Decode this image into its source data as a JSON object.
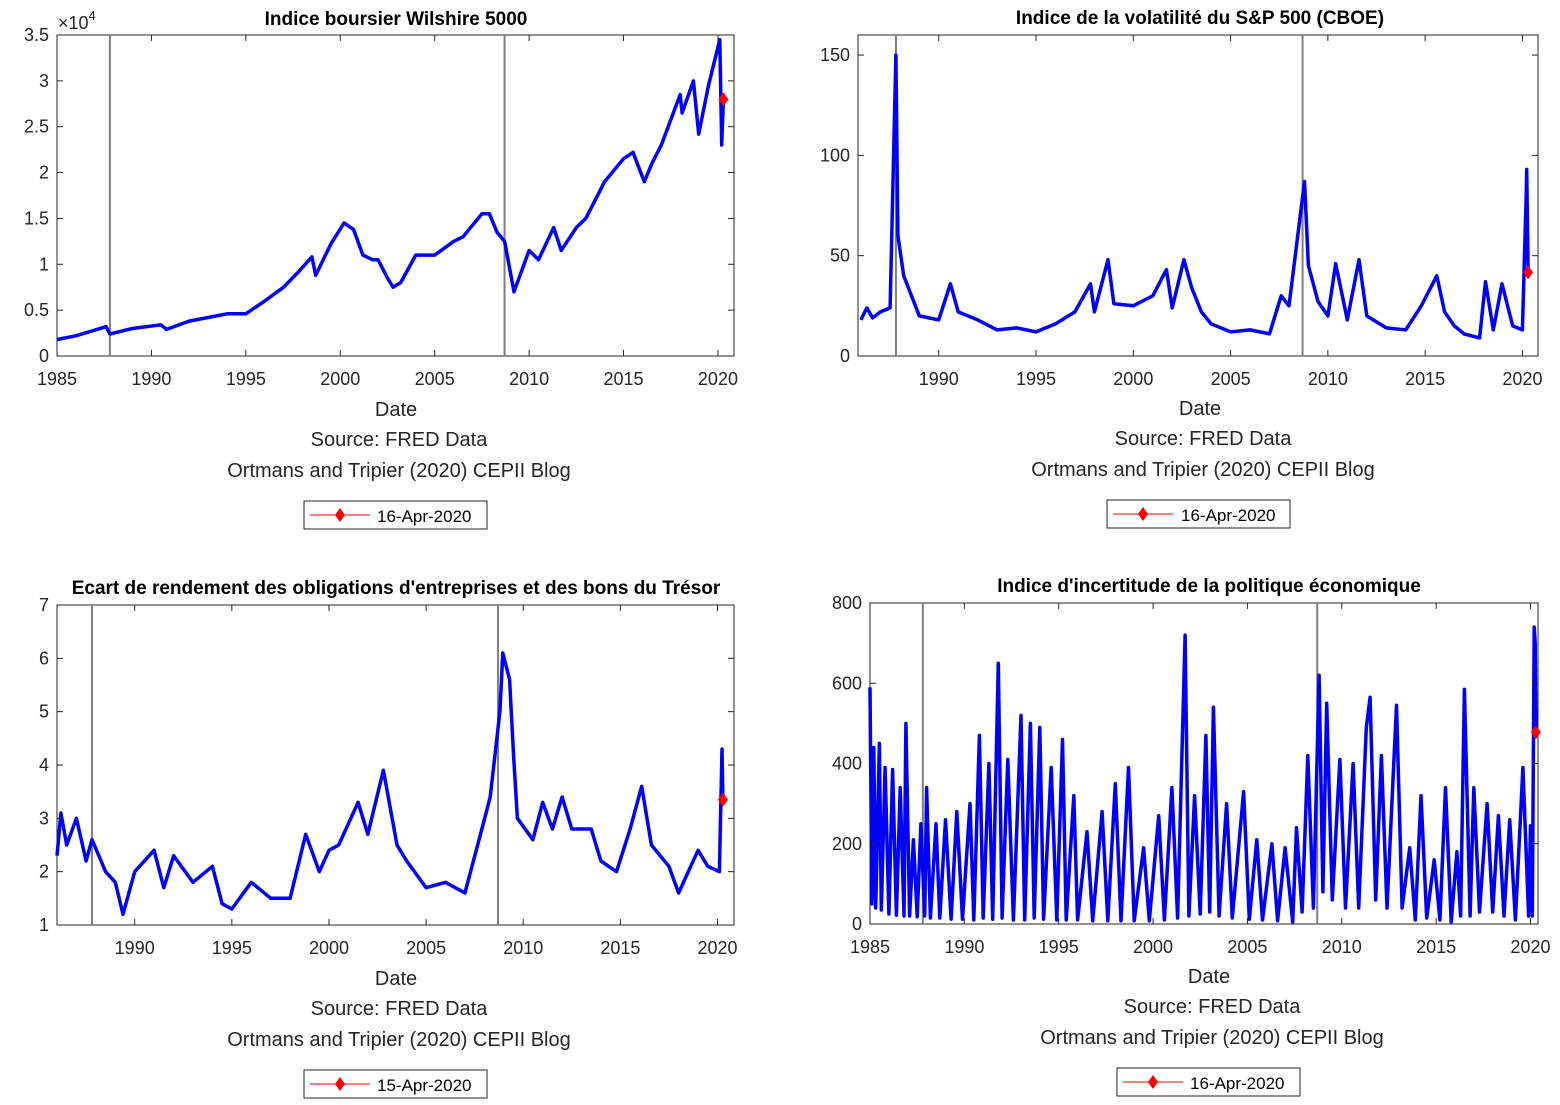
{
  "chart_data": [
    {
      "type": "line",
      "title": "Indice boursier Wilshire 5000",
      "xlabel": "Date",
      "notes": [
        "Source: FRED Data",
        "Ortmans and Tripier (2020) CEPII Blog"
      ],
      "exponent_label": "×10",
      "exponent_power": "4",
      "xlim": [
        1985,
        2020.85
      ],
      "ylim": [
        0,
        3.5
      ],
      "xticks": [
        1985,
        1990,
        1995,
        2000,
        2005,
        2010,
        2015,
        2020
      ],
      "yticks": [
        0,
        0.5,
        1,
        1.5,
        2,
        2.5,
        3,
        3.5
      ],
      "ytick_labels": [
        "0",
        "0.5",
        "1",
        "1.5",
        "2",
        "2.5",
        "3",
        "3.5"
      ],
      "vlines": [
        1987.8,
        2008.7
      ],
      "series_color": "#0000ff",
      "marker": {
        "x": 2020.29,
        "y": 2.8,
        "label": "16-Apr-2020",
        "color": "#ff0000"
      },
      "points": [
        [
          1985,
          0.18
        ],
        [
          1986,
          0.22
        ],
        [
          1987.6,
          0.32
        ],
        [
          1987.8,
          0.24
        ],
        [
          1989,
          0.3
        ],
        [
          1990.5,
          0.34
        ],
        [
          1990.8,
          0.29
        ],
        [
          1992,
          0.38
        ],
        [
          1993,
          0.42
        ],
        [
          1994,
          0.46
        ],
        [
          1995,
          0.46
        ],
        [
          1996,
          0.6
        ],
        [
          1997,
          0.75
        ],
        [
          1997.8,
          0.92
        ],
        [
          1998.5,
          1.08
        ],
        [
          1998.7,
          0.88
        ],
        [
          1999.5,
          1.22
        ],
        [
          2000.2,
          1.45
        ],
        [
          2000.7,
          1.38
        ],
        [
          2001.2,
          1.1
        ],
        [
          2001.7,
          1.05
        ],
        [
          2002,
          1.05
        ],
        [
          2002.5,
          0.85
        ],
        [
          2002.8,
          0.75
        ],
        [
          2003.2,
          0.8
        ],
        [
          2004,
          1.1
        ],
        [
          2005,
          1.1
        ],
        [
          2006,
          1.25
        ],
        [
          2006.5,
          1.3
        ],
        [
          2007.5,
          1.55
        ],
        [
          2007.9,
          1.55
        ],
        [
          2008.3,
          1.35
        ],
        [
          2008.7,
          1.25
        ],
        [
          2009.2,
          0.7
        ],
        [
          2010,
          1.15
        ],
        [
          2010.5,
          1.05
        ],
        [
          2011.3,
          1.4
        ],
        [
          2011.7,
          1.15
        ],
        [
          2012.5,
          1.4
        ],
        [
          2013,
          1.5
        ],
        [
          2014,
          1.9
        ],
        [
          2015,
          2.15
        ],
        [
          2015.5,
          2.22
        ],
        [
          2016.1,
          1.9
        ],
        [
          2016.5,
          2.1
        ],
        [
          2017,
          2.3
        ],
        [
          2018,
          2.85
        ],
        [
          2018.1,
          2.65
        ],
        [
          2018.7,
          3.0
        ],
        [
          2018.98,
          2.42
        ],
        [
          2019.5,
          2.95
        ],
        [
          2020.1,
          3.45
        ],
        [
          2020.2,
          2.3
        ],
        [
          2020.29,
          2.8
        ]
      ]
    },
    {
      "type": "line",
      "title": "Indice de la volatilité du S&P 500 (CBOE)",
      "xlabel": "Date",
      "notes": [
        "Source: FRED Data",
        "Ortmans and Tripier (2020) CEPII Blog"
      ],
      "xlim": [
        1985.85,
        2020.8
      ],
      "ylim": [
        0,
        160
      ],
      "xticks": [
        1990,
        1995,
        2000,
        2005,
        2010,
        2015,
        2020
      ],
      "yticks": [
        0,
        50,
        100,
        150
      ],
      "ytick_labels": [
        "0",
        "50",
        "100",
        "150"
      ],
      "vlines": [
        1987.8,
        2008.7
      ],
      "series_color": "#0000ff",
      "marker": {
        "x": 2020.29,
        "y": 41.7,
        "label": "16-Apr-2020",
        "color": "#ff0000"
      },
      "points": [
        [
          1986,
          18
        ],
        [
          1986.3,
          24
        ],
        [
          1986.6,
          19
        ],
        [
          1987,
          22
        ],
        [
          1987.5,
          24
        ],
        [
          1987.8,
          150
        ],
        [
          1987.9,
          60
        ],
        [
          1988.2,
          40
        ],
        [
          1989,
          20
        ],
        [
          1990,
          18
        ],
        [
          1990.6,
          36
        ],
        [
          1991,
          22
        ],
        [
          1992,
          18
        ],
        [
          1993,
          13
        ],
        [
          1994,
          14
        ],
        [
          1995,
          12
        ],
        [
          1996,
          16
        ],
        [
          1997,
          22
        ],
        [
          1997.8,
          36
        ],
        [
          1998,
          22
        ],
        [
          1998.7,
          48
        ],
        [
          1999,
          26
        ],
        [
          2000,
          25
        ],
        [
          2001,
          30
        ],
        [
          2001.7,
          43
        ],
        [
          2002,
          24
        ],
        [
          2002.6,
          48
        ],
        [
          2003,
          34
        ],
        [
          2003.5,
          22
        ],
        [
          2004,
          16
        ],
        [
          2005,
          12
        ],
        [
          2006,
          13
        ],
        [
          2007,
          11
        ],
        [
          2007.6,
          30
        ],
        [
          2008,
          25
        ],
        [
          2008.8,
          87
        ],
        [
          2009,
          45
        ],
        [
          2009.5,
          27
        ],
        [
          2010,
          20
        ],
        [
          2010.4,
          46
        ],
        [
          2011,
          18
        ],
        [
          2011.6,
          48
        ],
        [
          2012,
          20
        ],
        [
          2013,
          14
        ],
        [
          2014,
          13
        ],
        [
          2014.8,
          25
        ],
        [
          2015.6,
          40
        ],
        [
          2016,
          22
        ],
        [
          2016.5,
          15
        ],
        [
          2017,
          11
        ],
        [
          2017.8,
          9
        ],
        [
          2018.1,
          37
        ],
        [
          2018.5,
          13
        ],
        [
          2018.95,
          36
        ],
        [
          2019.5,
          15
        ],
        [
          2020,
          13
        ],
        [
          2020.2,
          82
        ],
        [
          2020.22,
          93
        ],
        [
          2020.29,
          41.7
        ]
      ]
    },
    {
      "type": "line",
      "title": "Ecart de rendement des obligations d'entreprises et des bons du Trésor",
      "xlabel": "Date",
      "notes": [
        "Source: FRED Data",
        "Ortmans and Tripier (2020) CEPII Blog"
      ],
      "xlim": [
        1986,
        2020.85
      ],
      "ylim": [
        1,
        7
      ],
      "xticks": [
        1990,
        1995,
        2000,
        2005,
        2010,
        2015,
        2020
      ],
      "yticks": [
        1,
        2,
        3,
        4,
        5,
        6,
        7
      ],
      "ytick_labels": [
        "1",
        "2",
        "3",
        "4",
        "5",
        "6",
        "7"
      ],
      "vlines": [
        1987.8,
        2008.7
      ],
      "series_color": "#0000ff",
      "marker": {
        "x": 2020.28,
        "y": 3.35,
        "label": "15-Apr-2020",
        "color": "#ff0000"
      },
      "points": [
        [
          1986,
          2.3
        ],
        [
          1986.2,
          3.1
        ],
        [
          1986.5,
          2.5
        ],
        [
          1987,
          3.0
        ],
        [
          1987.5,
          2.2
        ],
        [
          1987.8,
          2.6
        ],
        [
          1988.5,
          2.0
        ],
        [
          1989,
          1.8
        ],
        [
          1989.4,
          1.2
        ],
        [
          1990,
          2.0
        ],
        [
          1991,
          2.4
        ],
        [
          1991.5,
          1.7
        ],
        [
          1992,
          2.3
        ],
        [
          1993,
          1.8
        ],
        [
          1994,
          2.1
        ],
        [
          1994.5,
          1.4
        ],
        [
          1995,
          1.3
        ],
        [
          1996,
          1.8
        ],
        [
          1997,
          1.5
        ],
        [
          1998,
          1.5
        ],
        [
          1998.8,
          2.7
        ],
        [
          1999.5,
          2.0
        ],
        [
          2000,
          2.4
        ],
        [
          2000.5,
          2.5
        ],
        [
          2001.5,
          3.3
        ],
        [
          2002,
          2.7
        ],
        [
          2002.8,
          3.9
        ],
        [
          2003.5,
          2.5
        ],
        [
          2004,
          2.2
        ],
        [
          2005,
          1.7
        ],
        [
          2006,
          1.8
        ],
        [
          2007,
          1.6
        ],
        [
          2007.8,
          2.7
        ],
        [
          2008.3,
          3.4
        ],
        [
          2008.8,
          5.0
        ],
        [
          2008.95,
          6.1
        ],
        [
          2009.3,
          5.6
        ],
        [
          2009.5,
          4.2
        ],
        [
          2009.7,
          3.0
        ],
        [
          2010.5,
          2.6
        ],
        [
          2011,
          3.3
        ],
        [
          2011.5,
          2.8
        ],
        [
          2012,
          3.4
        ],
        [
          2012.5,
          2.8
        ],
        [
          2013.5,
          2.8
        ],
        [
          2014,
          2.2
        ],
        [
          2014.8,
          2.0
        ],
        [
          2015.5,
          2.8
        ],
        [
          2016.1,
          3.6
        ],
        [
          2016.6,
          2.5
        ],
        [
          2017.5,
          2.1
        ],
        [
          2018,
          1.6
        ],
        [
          2018.5,
          2.0
        ],
        [
          2019,
          2.4
        ],
        [
          2019.5,
          2.1
        ],
        [
          2020.1,
          2.0
        ],
        [
          2020.23,
          4.3
        ],
        [
          2020.28,
          3.35
        ]
      ]
    },
    {
      "type": "line",
      "title": "Indice d'incertitude de la politique économique",
      "xlabel": "Date",
      "notes": [
        "Source: FRED Data",
        "Ortmans and Tripier (2020) CEPII Blog"
      ],
      "xlim": [
        1985,
        2020.4
      ],
      "ylim": [
        0,
        800
      ],
      "xticks": [
        1985,
        1990,
        1995,
        2000,
        2005,
        2010,
        2015,
        2020
      ],
      "yticks": [
        0,
        200,
        400,
        600,
        800
      ],
      "ytick_labels": [
        "0",
        "200",
        "400",
        "600",
        "800"
      ],
      "vlines": [
        1987.8,
        2008.7
      ],
      "series_color": "#0000ff",
      "marker": {
        "x": 2020.29,
        "y": 478,
        "label": "16-Apr-2020",
        "color": "#ff0000"
      },
      "points": [
        [
          1985,
          590
        ],
        [
          1985.1,
          50
        ],
        [
          1985.2,
          440
        ],
        [
          1985.3,
          40
        ],
        [
          1985.5,
          450
        ],
        [
          1985.6,
          35
        ],
        [
          1985.8,
          390
        ],
        [
          1986,
          25
        ],
        [
          1986.2,
          385
        ],
        [
          1986.4,
          22
        ],
        [
          1986.6,
          340
        ],
        [
          1986.8,
          20
        ],
        [
          1986.9,
          500
        ],
        [
          1987.1,
          20
        ],
        [
          1987.3,
          210
        ],
        [
          1987.5,
          18
        ],
        [
          1987.7,
          250
        ],
        [
          1987.9,
          20
        ],
        [
          1988,
          340
        ],
        [
          1988.2,
          15
        ],
        [
          1988.5,
          250
        ],
        [
          1988.7,
          15
        ],
        [
          1989,
          260
        ],
        [
          1989.3,
          12
        ],
        [
          1989.6,
          280
        ],
        [
          1989.9,
          12
        ],
        [
          1990.3,
          300
        ],
        [
          1990.5,
          10
        ],
        [
          1990.8,
          470
        ],
        [
          1991,
          15
        ],
        [
          1991.3,
          400
        ],
        [
          1991.5,
          12
        ],
        [
          1991.8,
          650
        ],
        [
          1992,
          15
        ],
        [
          1992.3,
          410
        ],
        [
          1992.6,
          10
        ],
        [
          1993,
          520
        ],
        [
          1993.2,
          10
        ],
        [
          1993.5,
          500
        ],
        [
          1993.7,
          15
        ],
        [
          1994,
          490
        ],
        [
          1994.2,
          12
        ],
        [
          1994.6,
          390
        ],
        [
          1994.9,
          10
        ],
        [
          1995.2,
          460
        ],
        [
          1995.4,
          10
        ],
        [
          1995.8,
          320
        ],
        [
          1996,
          10
        ],
        [
          1996.5,
          230
        ],
        [
          1996.8,
          8
        ],
        [
          1997.3,
          280
        ],
        [
          1997.6,
          8
        ],
        [
          1998,
          350
        ],
        [
          1998.3,
          8
        ],
        [
          1998.7,
          390
        ],
        [
          1999,
          8
        ],
        [
          1999.5,
          190
        ],
        [
          1999.8,
          8
        ],
        [
          2000.3,
          270
        ],
        [
          2000.6,
          10
        ],
        [
          2001,
          340
        ],
        [
          2001.3,
          15
        ],
        [
          2001.7,
          720
        ],
        [
          2001.9,
          20
        ],
        [
          2002.2,
          320
        ],
        [
          2002.5,
          25
        ],
        [
          2002.8,
          470
        ],
        [
          2003,
          30
        ],
        [
          2003.2,
          540
        ],
        [
          2003.5,
          20
        ],
        [
          2003.9,
          300
        ],
        [
          2004.2,
          15
        ],
        [
          2004.8,
          330
        ],
        [
          2005.1,
          12
        ],
        [
          2005.5,
          210
        ],
        [
          2005.8,
          10
        ],
        [
          2006.3,
          200
        ],
        [
          2006.6,
          8
        ],
        [
          2007,
          190
        ],
        [
          2007.4,
          5
        ],
        [
          2007.6,
          240
        ],
        [
          2007.9,
          30
        ],
        [
          2008.2,
          420
        ],
        [
          2008.5,
          40
        ],
        [
          2008.8,
          620
        ],
        [
          2009,
          80
        ],
        [
          2009.2,
          550
        ],
        [
          2009.5,
          60
        ],
        [
          2009.9,
          410
        ],
        [
          2010.2,
          40
        ],
        [
          2010.6,
          400
        ],
        [
          2010.9,
          40
        ],
        [
          2011.3,
          490
        ],
        [
          2011.5,
          565
        ],
        [
          2011.8,
          60
        ],
        [
          2012.1,
          420
        ],
        [
          2012.4,
          40
        ],
        [
          2012.9,
          545
        ],
        [
          2013.2,
          40
        ],
        [
          2013.6,
          190
        ],
        [
          2013.9,
          10
        ],
        [
          2014.2,
          320
        ],
        [
          2014.5,
          15
        ],
        [
          2014.9,
          160
        ],
        [
          2015.2,
          10
        ],
        [
          2015.5,
          340
        ],
        [
          2015.8,
          5
        ],
        [
          2016.1,
          180
        ],
        [
          2016.3,
          20
        ],
        [
          2016.5,
          585
        ],
        [
          2016.8,
          20
        ],
        [
          2017,
          340
        ],
        [
          2017.3,
          30
        ],
        [
          2017.7,
          300
        ],
        [
          2018,
          30
        ],
        [
          2018.3,
          270
        ],
        [
          2018.6,
          20
        ],
        [
          2018.9,
          260
        ],
        [
          2019.2,
          10
        ],
        [
          2019.6,
          390
        ],
        [
          2019.9,
          20
        ],
        [
          2020,
          245
        ],
        [
          2020.1,
          20
        ],
        [
          2020.2,
          740
        ],
        [
          2020.25,
          700
        ],
        [
          2020.29,
          478
        ]
      ]
    }
  ]
}
